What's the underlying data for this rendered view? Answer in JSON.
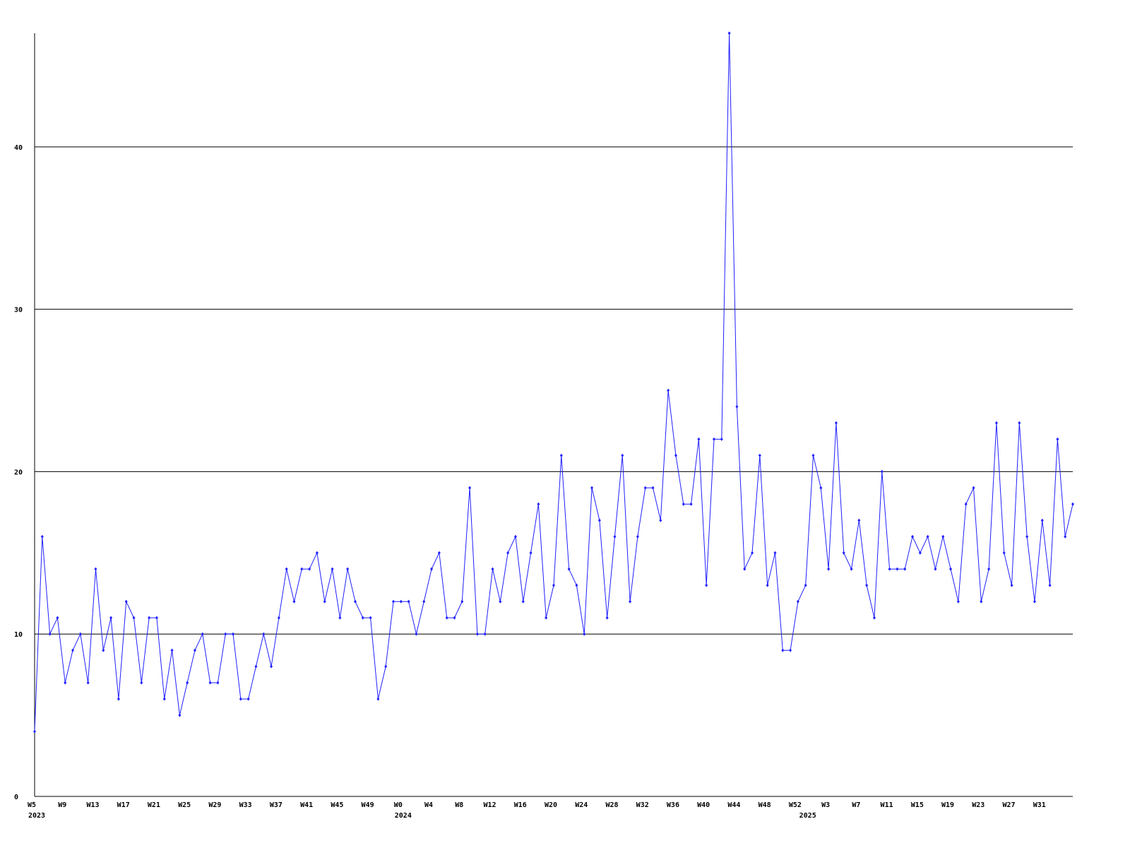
{
  "chart_data": {
    "type": "line",
    "categories": [
      "W5",
      null,
      null,
      null,
      "W9",
      null,
      null,
      null,
      "W13",
      null,
      null,
      null,
      "W17",
      null,
      null,
      null,
      "W21",
      null,
      null,
      null,
      "W25",
      null,
      null,
      null,
      "W29",
      null,
      null,
      null,
      "W33",
      null,
      null,
      null,
      "W37",
      null,
      null,
      null,
      "W41",
      null,
      null,
      null,
      "W45",
      null,
      null,
      null,
      "W49",
      null,
      null,
      null,
      "W0",
      null,
      null,
      null,
      "W4",
      null,
      null,
      null,
      "W8",
      null,
      null,
      null,
      "W12",
      null,
      null,
      null,
      "W16",
      null,
      null,
      null,
      "W20",
      null,
      null,
      null,
      "W24",
      null,
      null,
      null,
      "W28",
      null,
      null,
      null,
      "W32",
      null,
      null,
      null,
      "W36",
      null,
      null,
      null,
      "W40",
      null,
      null,
      null,
      "W44",
      null,
      null,
      null,
      "W48",
      null,
      null,
      null,
      "W52",
      null,
      null,
      null,
      "W3",
      null,
      null,
      null,
      "W7",
      null,
      null,
      null,
      "W11",
      null,
      null,
      null,
      "W15",
      null,
      null,
      null,
      "W19",
      null,
      null,
      null,
      "W23",
      null,
      null,
      null,
      "W27",
      null,
      null,
      null,
      "W31",
      null,
      null,
      null,
      null
    ],
    "year_labels": [
      {
        "label": "2023",
        "index": 0
      },
      {
        "label": "2024",
        "index": 48
      },
      {
        "label": "2025",
        "index": 101
      }
    ],
    "series": [
      {
        "color": "#2020ff",
        "values": [
          4,
          16,
          10,
          11,
          7,
          9,
          10,
          7,
          14,
          9,
          11,
          6,
          12,
          11,
          7,
          11,
          11,
          6,
          9,
          5,
          7,
          9,
          10,
          7,
          7,
          10,
          10,
          6,
          6,
          8,
          10,
          8,
          11,
          14,
          12,
          14,
          14,
          15,
          12,
          14,
          11,
          14,
          12,
          11,
          11,
          6,
          8,
          12,
          12,
          12,
          10,
          12,
          14,
          15,
          11,
          11,
          12,
          19,
          10,
          10,
          14,
          12,
          15,
          16,
          12,
          15,
          18,
          11,
          13,
          21,
          14,
          13,
          10,
          19,
          17,
          11,
          16,
          21,
          12,
          16,
          19,
          19,
          17,
          25,
          21,
          18,
          18,
          22,
          13,
          22,
          22,
          47,
          24,
          14,
          15,
          21,
          13,
          15,
          9,
          9,
          12,
          13,
          21,
          19,
          14,
          23,
          15,
          14,
          17,
          13,
          11,
          20,
          14,
          14,
          14,
          16,
          15,
          16,
          14,
          16,
          14,
          12,
          18,
          19,
          12,
          14,
          23,
          15,
          13,
          23,
          16,
          12,
          17,
          13,
          22,
          16,
          18
        ]
      }
    ],
    "ylim": [
      0,
      47
    ],
    "yticks": [
      0,
      10,
      20,
      30,
      40
    ],
    "grid": true
  }
}
